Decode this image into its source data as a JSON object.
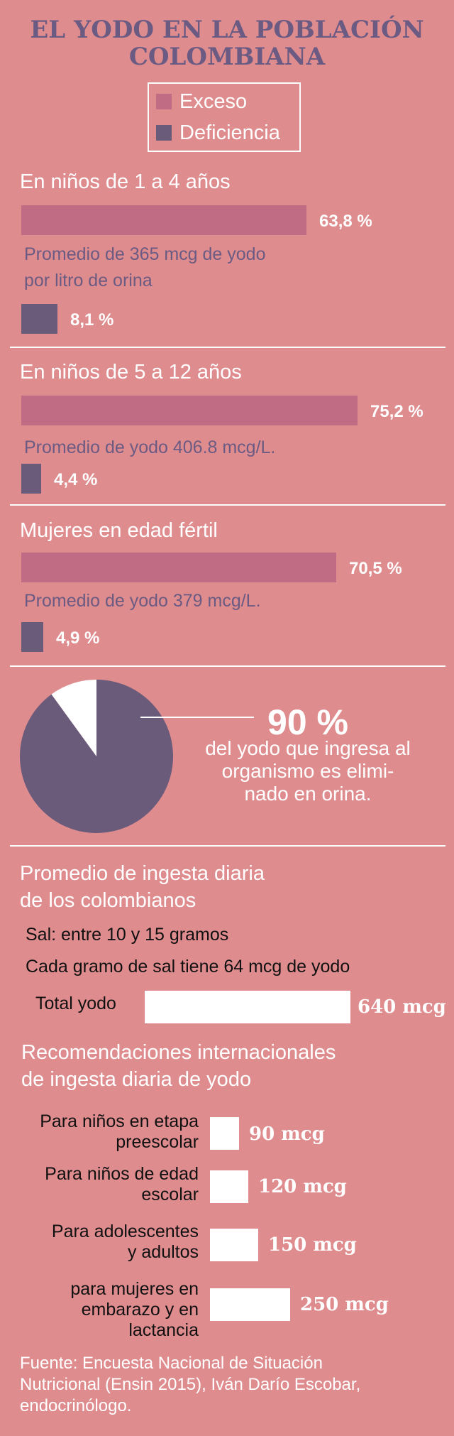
{
  "title": {
    "line1": "EL YODO EN LA POBLACIÓN",
    "line2": "COLOMBIANA"
  },
  "legend": {
    "excess": {
      "label": "Exceso",
      "color": "#c06c85"
    },
    "deficiency": {
      "label": "Deficiencia",
      "color": "#6b5b7b"
    }
  },
  "chart_data": [
    {
      "type": "bar",
      "title": "En niños de 1 a 4 años",
      "series": [
        {
          "name": "Exceso",
          "value": 63.8,
          "label": "63,8 %"
        },
        {
          "name": "Deficiencia",
          "value": 8.1,
          "label": "8,1 %"
        }
      ],
      "note": [
        "Promedio de 365 mcg de yodo",
        "por litro de orina"
      ]
    },
    {
      "type": "bar",
      "title": "En niños de 5 a 12 años",
      "series": [
        {
          "name": "Exceso",
          "value": 75.2,
          "label": "75,2 %"
        },
        {
          "name": "Deficiencia",
          "value": 4.4,
          "label": "4,4 %"
        }
      ],
      "note": [
        "Promedio de yodo 406.8 mcg/L."
      ]
    },
    {
      "type": "bar",
      "title": "Mujeres en edad fértil",
      "series": [
        {
          "name": "Exceso",
          "value": 70.5,
          "label": "70,5 %"
        },
        {
          "name": "Deficiencia",
          "value": 4.9,
          "label": "4,9 %"
        }
      ],
      "note": [
        "Promedio de yodo 379 mcg/L."
      ]
    },
    {
      "type": "pie",
      "slices": [
        {
          "value": 90,
          "color": "#6b5b7b"
        },
        {
          "value": 10,
          "color": "#ffffff"
        }
      ],
      "big_label": "90 %",
      "caption": [
        "del yodo que ingresa al",
        "organismo es elimi-",
        "nado en orina."
      ]
    },
    {
      "type": "bar",
      "title": "Recomendaciones internacionales de ingesta diaria de yodo",
      "unit": "mcg",
      "categories": [
        [
          "Para niños en etapa",
          "preescolar"
        ],
        [
          "Para niños de edad",
          "escolar"
        ],
        [
          "Para adolescentes",
          "y adultos"
        ],
        [
          "para mujeres en",
          "embarazo y en",
          "lactancia"
        ]
      ],
      "values": [
        90,
        120,
        150,
        250
      ],
      "labels": [
        "90 mcg",
        "120 mcg",
        "150 mcg",
        "250 mcg"
      ],
      "reference": {
        "label": "Total yodo",
        "value": 640,
        "value_label": "640 mcg"
      }
    }
  ],
  "intake": {
    "title1": "Promedio de ingesta diaria",
    "title2": "de los colombianos",
    "salt": "Sal: entre 10 y 15 gramos",
    "per_gram": "Cada gramo de sal tiene 64 mcg de yodo"
  },
  "recommendations": {
    "title1": "Recomendaciones internacionales",
    "title2": "de ingesta diaria de yodo"
  },
  "source": [
    "Fuente: Encuesta Nacional de Situación",
    "Nutricional (Ensin 2015), Iván Darío Escobar,",
    "endocrinólogo."
  ]
}
